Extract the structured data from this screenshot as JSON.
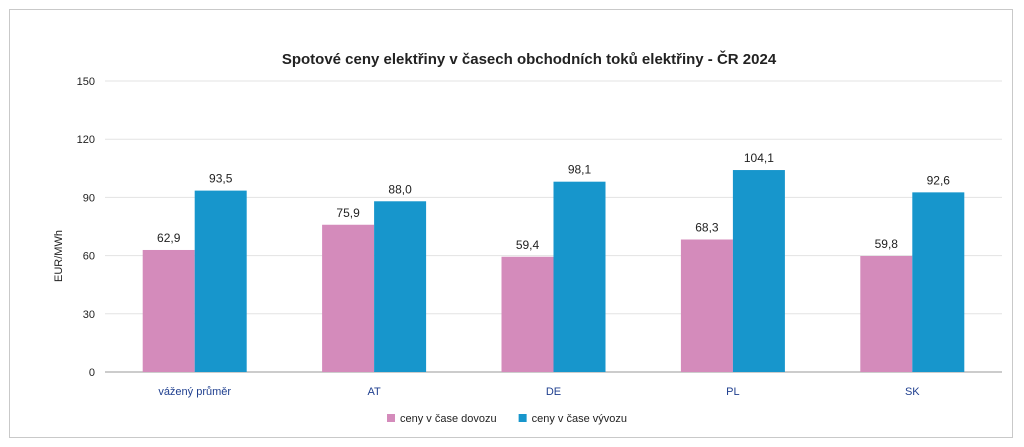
{
  "chart_data": {
    "type": "bar",
    "title": "Spotové ceny elektřiny v časech obchodních toků elektřiny - ČR 2024",
    "ylabel": "EUR/MWh",
    "xlabel": "",
    "ylim": [
      0,
      150
    ],
    "yticks": [
      0,
      30,
      60,
      90,
      120,
      150
    ],
    "categories": [
      "vážený průměr",
      "AT",
      "DE",
      "PL",
      "SK"
    ],
    "series": [
      {
        "name": "ceny v čase dovozu",
        "values": [
          62.9,
          75.9,
          59.4,
          68.3,
          59.8
        ],
        "labels": [
          "62,9",
          "75,9",
          "59,4",
          "68,3",
          "59,8"
        ],
        "color": "#d48bbb"
      },
      {
        "name": "ceny v čase vývozu",
        "values": [
          93.5,
          88.0,
          98.1,
          104.1,
          92.6
        ],
        "labels": [
          "93,5",
          "88,0",
          "98,1",
          "104,1",
          "92,6"
        ],
        "color": "#1796cc"
      }
    ],
    "grid": true,
    "legend": "bottom-center",
    "category_label_color": "#1f3f8f"
  }
}
